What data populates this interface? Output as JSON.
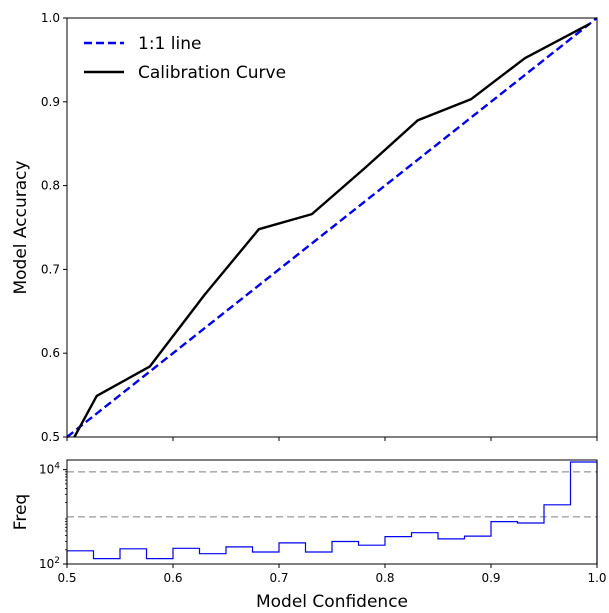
{
  "chart_data": [
    {
      "type": "line",
      "title": "",
      "xlabel": "",
      "ylabel": "Model Accuracy",
      "xlim": [
        0.5,
        1.0
      ],
      "ylim": [
        0.5,
        1.0
      ],
      "xticks": [
        0.5,
        0.6,
        0.7,
        0.8,
        0.9,
        1.0
      ],
      "xtick_labels_shown": false,
      "yticks": [
        0.5,
        0.6,
        0.7,
        0.8,
        0.9,
        1.0
      ],
      "ytick_labels": [
        "0.5",
        "0.6",
        "0.7",
        "0.8",
        "0.9",
        "1.0"
      ],
      "grid": false,
      "legend_position": "top-left",
      "series": [
        {
          "name": "1:1 line",
          "style": "dashed",
          "color": "#0000ee",
          "x": [
            0.5,
            1.0
          ],
          "y": [
            0.5,
            1.0
          ]
        },
        {
          "name": "Calibration Curve",
          "style": "solid",
          "color": "#000000",
          "x": [
            0.507,
            0.528,
            0.578,
            0.63,
            0.681,
            0.731,
            0.781,
            0.831,
            0.881,
            0.932,
            0.993
          ],
          "y": [
            0.5,
            0.549,
            0.584,
            0.67,
            0.748,
            0.766,
            0.821,
            0.878,
            0.903,
            0.952,
            0.993
          ]
        }
      ]
    },
    {
      "type": "histogram",
      "title": "",
      "xlabel": "Model Confidence",
      "ylabel": "Freq",
      "xlim": [
        0.5,
        1.0
      ],
      "ylim": [
        100,
        16000
      ],
      "yscale": "log",
      "xticks": [
        0.5,
        0.6,
        0.7,
        0.8,
        0.9,
        1.0
      ],
      "xtick_labels": [
        "0.5",
        "0.6",
        "0.7",
        "0.8",
        "0.9",
        "1.0"
      ],
      "yticks": [
        100,
        10000
      ],
      "ytick_labels": [
        "10^2",
        "10^4"
      ],
      "reference_lines": [
        {
          "y": 1000,
          "style": "dashed",
          "color": "#b0b0b0"
        },
        {
          "y": 9000,
          "style": "dashed",
          "color": "#b0b0b0"
        }
      ],
      "color": "#0000ee",
      "bins": [
        0.5,
        0.525,
        0.55,
        0.575,
        0.6,
        0.625,
        0.65,
        0.675,
        0.7,
        0.725,
        0.75,
        0.775,
        0.8,
        0.825,
        0.85,
        0.875,
        0.9,
        0.925,
        0.95,
        0.975,
        1.0
      ],
      "values": [
        190,
        130,
        210,
        130,
        215,
        165,
        230,
        180,
        280,
        180,
        300,
        250,
        380,
        460,
        340,
        390,
        790,
        740,
        1800,
        14500
      ]
    }
  ]
}
